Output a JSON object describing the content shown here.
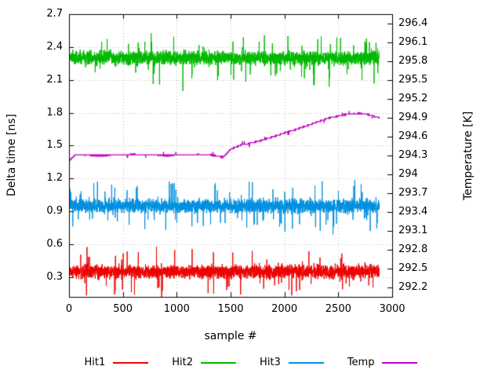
{
  "chart_data": {
    "type": "line",
    "title": "",
    "xlabel": "sample #",
    "ylabel_left": "Delta time [ns]",
    "ylabel_right": "Temperature [K]",
    "x_range": [
      0,
      3000
    ],
    "x_tick_labels": [
      "0",
      "500",
      "1000",
      "1500",
      "2000",
      "2500",
      "3000"
    ],
    "y_left_range": [
      0.12,
      2.7
    ],
    "y_left_tick_labels": [
      "0.3",
      "0.6",
      "0.9",
      "1.2",
      "1.5",
      "1.8",
      "2.1",
      "2.4",
      "2.7"
    ],
    "y_right_range": [
      292.05,
      296.55
    ],
    "y_right_tick_labels": [
      "292.2",
      "292.5",
      "292.8",
      "293.1",
      "293.4",
      "293.7",
      "294",
      "294.3",
      "294.6",
      "294.9",
      "295.2",
      "295.5",
      "295.8",
      "296.1",
      "296.4"
    ],
    "grid": true,
    "grid_color": "#bbbbbb",
    "background": "#ffffff",
    "legend_position": "bottom-center",
    "n_samples": 2880,
    "series": [
      {
        "name": "Hit1",
        "axis": "left",
        "style": "noise",
        "color": "#ee0000",
        "mean": 0.35,
        "sigma": 0.06,
        "observed_range": [
          0.12,
          0.62
        ]
      },
      {
        "name": "Hit2",
        "axis": "left",
        "style": "noise",
        "color": "#00b800",
        "mean": 2.3,
        "sigma": 0.06,
        "observed_range": [
          2.05,
          2.58
        ]
      },
      {
        "name": "Hit3",
        "axis": "left",
        "style": "noise",
        "color": "#0090e0",
        "mean": 0.95,
        "sigma": 0.06,
        "observed_range": [
          0.72,
          1.25
        ]
      },
      {
        "name": "Temp",
        "axis": "right",
        "style": "step",
        "color": "#c000c0",
        "quantum": 0.024,
        "waypoints_x_sample": [
          0,
          60,
          300,
          600,
          900,
          1200,
          1360,
          1430,
          1500,
          1600,
          1700,
          1800,
          1900,
          2000,
          2100,
          2200,
          2300,
          2400,
          2500,
          2600,
          2700,
          2780,
          2840,
          2880
        ],
        "waypoints_temp_k": [
          294.22,
          294.31,
          294.3,
          294.32,
          294.3,
          294.32,
          294.3,
          294.27,
          294.4,
          294.47,
          294.5,
          294.55,
          294.6,
          294.66,
          294.71,
          294.77,
          294.83,
          294.89,
          294.93,
          294.96,
          294.97,
          294.95,
          294.92,
          294.9
        ]
      }
    ]
  }
}
